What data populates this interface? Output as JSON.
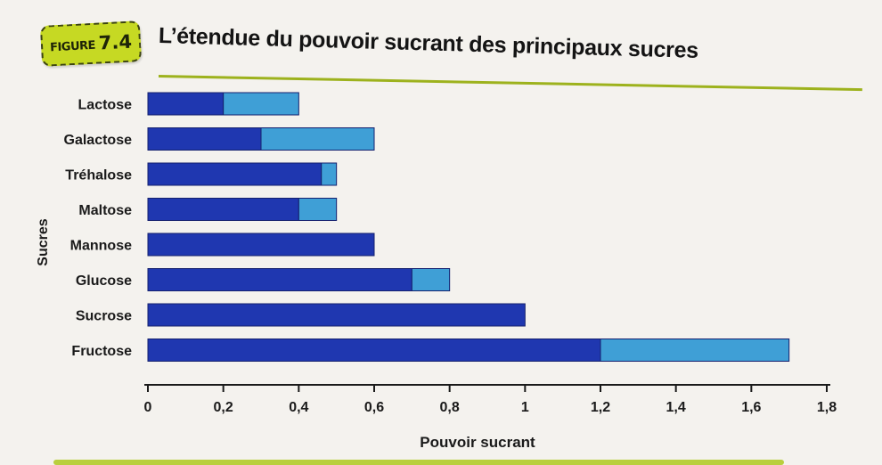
{
  "figure": {
    "label": "FIGURE",
    "number": "7.4"
  },
  "colors": {
    "min_bar": "#1f37b0",
    "range_bar": "#3f9fd6",
    "accent": "#c6d923",
    "rule": "#9db21d"
  },
  "chart_data": {
    "type": "bar",
    "orientation": "horizontal",
    "stacked": true,
    "title": "L’étendue du pouvoir sucrant des principaux sucres",
    "xlabel": "Pouvoir sucrant",
    "ylabel": "Sucres",
    "xlim": [
      0,
      1.8
    ],
    "xticks": [
      "0",
      "0,2",
      "0,4",
      "0,6",
      "0,8",
      "1",
      "1,2",
      "1,4",
      "1,6",
      "1,8"
    ],
    "categories": [
      "Lactose",
      "Galactose",
      "Tréhalose",
      "Maltose",
      "Mannose",
      "Glucose",
      "Sucrose",
      "Fructose"
    ],
    "series": [
      {
        "values": [
          0.2,
          0.3,
          0.46,
          0.4,
          0.6,
          0.7,
          1.0,
          1.2
        ]
      },
      {
        "values": [
          0.2,
          0.3,
          0.04,
          0.1,
          0.0,
          0.1,
          0.0,
          0.5
        ]
      }
    ],
    "grid": false,
    "legend": "none"
  }
}
